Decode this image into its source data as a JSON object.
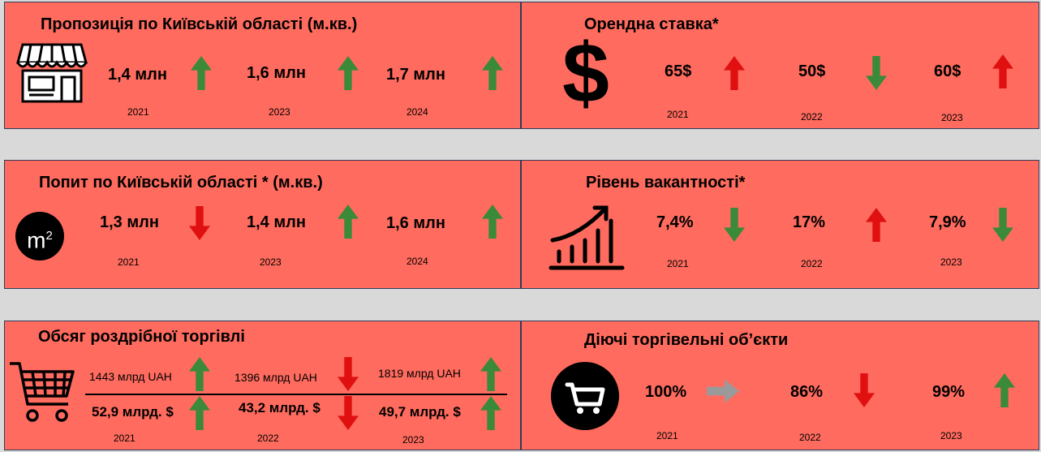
{
  "panels": {
    "supply": {
      "title": "Пропозиція по Київській області (м.кв.)",
      "icon": "store-icon",
      "items": [
        {
          "value": "1,4 млн",
          "year": "2021",
          "trend": "up",
          "color": "#3a8a3a"
        },
        {
          "value": "1,6 млн",
          "year": "2023",
          "trend": "up",
          "color": "#3a8a3a"
        },
        {
          "value": "1,7 млн",
          "year": "2024",
          "trend": "up",
          "color": "#3a8a3a"
        }
      ]
    },
    "rent": {
      "title": "Орендна ставка*",
      "icon": "dollar-icon",
      "items": [
        {
          "value": "65$",
          "year": "2021",
          "trend": "up",
          "color": "#e01010"
        },
        {
          "value": "50$",
          "year": "2022",
          "trend": "down",
          "color": "#3a8a3a"
        },
        {
          "value": "60$",
          "year": "2023",
          "trend": "up",
          "color": "#e01010"
        }
      ]
    },
    "demand": {
      "title": "Попит по Київській області * (м.кв.)",
      "icon": "square-meter-icon",
      "icon_text": "m",
      "icon_sup": "2",
      "items": [
        {
          "value": "1,3 млн",
          "year": "2021",
          "trend": "down",
          "color": "#e01010"
        },
        {
          "value": "1,4 млн",
          "year": "2023",
          "trend": "up",
          "color": "#3a8a3a"
        },
        {
          "value": "1,6 млн",
          "year": "2024",
          "trend": "up",
          "color": "#3a8a3a"
        }
      ]
    },
    "vacancy": {
      "title": "Рівень вакантності*",
      "icon": "growth-chart-icon",
      "items": [
        {
          "value": "7,4%",
          "year": "2021",
          "trend": "down",
          "color": "#3a8a3a"
        },
        {
          "value": "17%",
          "year": "2022",
          "trend": "up",
          "color": "#e01010"
        },
        {
          "value": "7,9%",
          "year": "2023",
          "trend": "down",
          "color": "#3a8a3a"
        }
      ]
    },
    "retail": {
      "title": "Обсяг роздрібної торгівлі",
      "icon": "shopping-cart-icon",
      "items": [
        {
          "uah": "1443 млрд UAH",
          "usd": "52,9 млрд. $",
          "year": "2021",
          "uah_trend": "up",
          "uah_color": "#3a8a3a",
          "usd_trend": "up",
          "usd_color": "#3a8a3a"
        },
        {
          "uah": "1396 млрд UAH",
          "usd": "43,2 млрд. $",
          "year": "2022",
          "uah_trend": "down",
          "uah_color": "#e01010",
          "usd_trend": "down",
          "usd_color": "#e01010"
        },
        {
          "uah": "1819 млрд UAH",
          "usd": "49,7 млрд. $",
          "year": "2023",
          "uah_trend": "up",
          "uah_color": "#3a8a3a",
          "usd_trend": "up",
          "usd_color": "#3a8a3a"
        }
      ]
    },
    "objects": {
      "title": "Діючі торгівельні об’єкти",
      "icon": "cart-circle-icon",
      "items": [
        {
          "value": "100%",
          "year": "2021",
          "trend": "right",
          "color": "#9a9a9a"
        },
        {
          "value": "86%",
          "year": "2022",
          "trend": "down",
          "color": "#e01010"
        },
        {
          "value": "99%",
          "year": "2023",
          "trend": "up",
          "color": "#3a8a3a"
        }
      ]
    }
  }
}
